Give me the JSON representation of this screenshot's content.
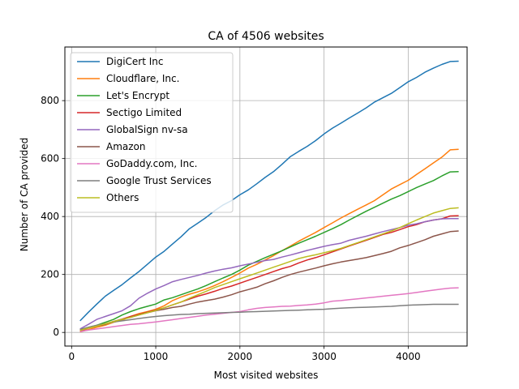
{
  "chart_data": {
    "type": "line",
    "title": "CA of 4506 websites",
    "xlabel": "Most visited websites",
    "ylabel": "Number of CA provided",
    "xlim": [
      -80,
      4700
    ],
    "ylim": [
      -47,
      985
    ],
    "xticks": [
      0,
      1000,
      2000,
      3000,
      4000
    ],
    "yticks": [
      0,
      200,
      400,
      600,
      800
    ],
    "grid": true,
    "legend_position": "top-left",
    "series": [
      {
        "name": "DigiCert Inc",
        "color": "#1f77b4",
        "x": [
          100,
          200,
          300,
          400,
          500,
          600,
          700,
          800,
          900,
          1000,
          1100,
          1200,
          1300,
          1400,
          1500,
          1600,
          1700,
          1800,
          1900,
          2000,
          2100,
          2200,
          2300,
          2400,
          2500,
          2600,
          2700,
          2800,
          2900,
          3000,
          3100,
          3200,
          3300,
          3400,
          3500,
          3600,
          3700,
          3800,
          3900,
          4000,
          4100,
          4200,
          4300,
          4400,
          4500,
          4600
        ],
        "y": [
          40,
          70,
          98,
          125,
          145,
          165,
          188,
          210,
          235,
          260,
          280,
          305,
          330,
          358,
          377,
          397,
          420,
          440,
          455,
          475,
          492,
          513,
          535,
          555,
          580,
          607,
          625,
          642,
          662,
          685,
          705,
          722,
          740,
          757,
          775,
          795,
          810,
          825,
          845,
          865,
          880,
          898,
          912,
          925,
          935,
          936
        ]
      },
      {
        "name": "Cloudflare, Inc.",
        "color": "#ff7f0e",
        "x": [
          100,
          200,
          300,
          400,
          500,
          600,
          700,
          800,
          900,
          1000,
          1100,
          1200,
          1300,
          1400,
          1500,
          1600,
          1700,
          1800,
          1900,
          2000,
          2100,
          2200,
          2300,
          2400,
          2500,
          2600,
          2700,
          2800,
          2900,
          3000,
          3100,
          3200,
          3300,
          3400,
          3500,
          3600,
          3700,
          3800,
          3900,
          4000,
          4100,
          4200,
          4300,
          4400,
          4500,
          4600
        ],
        "y": [
          2,
          10,
          18,
          25,
          35,
          42,
          55,
          65,
          72,
          80,
          92,
          110,
          122,
          132,
          140,
          150,
          162,
          175,
          190,
          205,
          222,
          235,
          250,
          265,
          282,
          298,
          315,
          330,
          345,
          362,
          378,
          395,
          410,
          425,
          440,
          455,
          475,
          495,
          510,
          525,
          545,
          565,
          585,
          605,
          630,
          632
        ]
      },
      {
        "name": "Let's Encrypt",
        "color": "#2ca02c",
        "x": [
          100,
          200,
          300,
          400,
          500,
          600,
          700,
          800,
          900,
          1000,
          1100,
          1200,
          1300,
          1400,
          1500,
          1600,
          1700,
          1800,
          1900,
          2000,
          2100,
          2200,
          2300,
          2400,
          2500,
          2600,
          2700,
          2800,
          2900,
          3000,
          3100,
          3200,
          3300,
          3400,
          3500,
          3600,
          3700,
          3800,
          3900,
          4000,
          4100,
          4200,
          4300,
          4400,
          4500,
          4600
        ],
        "y": [
          10,
          18,
          25,
          35,
          45,
          60,
          72,
          82,
          90,
          98,
          112,
          120,
          130,
          140,
          150,
          162,
          175,
          188,
          200,
          215,
          232,
          245,
          258,
          270,
          282,
          295,
          308,
          320,
          332,
          345,
          358,
          372,
          388,
          403,
          418,
          432,
          446,
          460,
          472,
          486,
          500,
          512,
          524,
          540,
          554,
          555
        ]
      },
      {
        "name": "Sectigo Limited",
        "color": "#d62728",
        "x": [
          100,
          200,
          300,
          400,
          500,
          600,
          700,
          800,
          900,
          1000,
          1100,
          1200,
          1300,
          1400,
          1500,
          1600,
          1700,
          1800,
          1900,
          2000,
          2100,
          2200,
          2300,
          2400,
          2500,
          2600,
          2700,
          2800,
          2900,
          3000,
          3100,
          3200,
          3300,
          3400,
          3500,
          3600,
          3700,
          3800,
          3900,
          4000,
          4100,
          4200,
          4300,
          4400,
          4500,
          4600
        ],
        "y": [
          5,
          15,
          22,
          30,
          38,
          46,
          55,
          62,
          70,
          78,
          85,
          95,
          105,
          115,
          125,
          133,
          142,
          152,
          160,
          170,
          180,
          190,
          200,
          210,
          220,
          228,
          240,
          250,
          258,
          268,
          278,
          288,
          298,
          308,
          318,
          328,
          338,
          345,
          355,
          365,
          372,
          382,
          388,
          392,
          402,
          403
        ]
      },
      {
        "name": "GlobalSign nv-sa",
        "color": "#9467bd",
        "x": [
          100,
          200,
          300,
          400,
          500,
          600,
          700,
          800,
          900,
          1000,
          1100,
          1200,
          1300,
          1400,
          1500,
          1600,
          1700,
          1800,
          1900,
          2000,
          2100,
          2200,
          2300,
          2400,
          2500,
          2600,
          2700,
          2800,
          2900,
          3000,
          3100,
          3200,
          3300,
          3400,
          3500,
          3600,
          3700,
          3800,
          3900,
          4000,
          4100,
          4200,
          4300,
          4400,
          4500,
          4600
        ],
        "y": [
          12,
          28,
          45,
          55,
          65,
          75,
          92,
          118,
          135,
          150,
          162,
          175,
          183,
          190,
          197,
          205,
          212,
          218,
          223,
          230,
          236,
          242,
          248,
          252,
          260,
          267,
          275,
          283,
          290,
          297,
          303,
          308,
          318,
          325,
          332,
          340,
          348,
          355,
          362,
          370,
          375,
          382,
          388,
          392,
          393,
          393
        ]
      },
      {
        "name": "Amazon",
        "color": "#8c564b",
        "x": [
          100,
          200,
          300,
          400,
          500,
          600,
          700,
          800,
          900,
          1000,
          1100,
          1200,
          1300,
          1400,
          1500,
          1600,
          1700,
          1800,
          1900,
          2000,
          2100,
          2200,
          2300,
          2400,
          2500,
          2600,
          2700,
          2800,
          2900,
          3000,
          3100,
          3200,
          3300,
          3400,
          3500,
          3600,
          3700,
          3800,
          3900,
          4000,
          4100,
          4200,
          4300,
          4400,
          4500,
          4600
        ],
        "y": [
          8,
          16,
          22,
          28,
          38,
          45,
          52,
          60,
          68,
          75,
          80,
          86,
          90,
          98,
          105,
          110,
          115,
          122,
          130,
          140,
          148,
          156,
          168,
          178,
          190,
          200,
          208,
          215,
          222,
          230,
          237,
          243,
          248,
          253,
          258,
          265,
          272,
          280,
          292,
          300,
          310,
          320,
          332,
          340,
          348,
          350
        ]
      },
      {
        "name": "GoDaddy.com, Inc.",
        "color": "#e377c2",
        "x": [
          100,
          200,
          300,
          400,
          500,
          600,
          700,
          800,
          900,
          1000,
          1100,
          1200,
          1300,
          1400,
          1500,
          1600,
          1700,
          1800,
          1900,
          2000,
          2100,
          2200,
          2300,
          2400,
          2500,
          2600,
          2700,
          2800,
          2900,
          3000,
          3100,
          3200,
          3300,
          3400,
          3500,
          3600,
          3700,
          3800,
          3900,
          4000,
          4100,
          4200,
          4300,
          4400,
          4500,
          4600
        ],
        "y": [
          3,
          8,
          12,
          16,
          20,
          24,
          28,
          30,
          33,
          36,
          40,
          44,
          48,
          52,
          56,
          60,
          63,
          66,
          69,
          72,
          78,
          83,
          86,
          88,
          90,
          91,
          93,
          95,
          98,
          102,
          108,
          110,
          113,
          116,
          119,
          122,
          125,
          128,
          131,
          134,
          138,
          142,
          146,
          150,
          153,
          154
        ]
      },
      {
        "name": "Google Trust Services",
        "color": "#7f7f7f",
        "x": [
          100,
          200,
          300,
          400,
          500,
          600,
          700,
          800,
          900,
          1000,
          1100,
          1200,
          1300,
          1400,
          1500,
          1600,
          1700,
          1800,
          1900,
          2000,
          2100,
          2200,
          2300,
          2400,
          2500,
          2600,
          2700,
          2800,
          2900,
          3000,
          3100,
          3200,
          3300,
          3400,
          3500,
          3600,
          3700,
          3800,
          3900,
          4000,
          4100,
          4200,
          4300,
          4400,
          4500,
          4600
        ],
        "y": [
          10,
          18,
          25,
          30,
          36,
          40,
          44,
          48,
          52,
          55,
          58,
          60,
          62,
          63,
          65,
          66,
          67,
          68,
          69,
          70,
          71,
          72,
          73,
          74,
          75,
          76,
          77,
          78,
          79,
          80,
          82,
          84,
          85,
          86,
          87,
          88,
          89,
          90,
          92,
          94,
          95,
          96,
          97,
          97,
          97,
          97
        ]
      },
      {
        "name": "Others",
        "color": "#bcbd22",
        "x": [
          100,
          200,
          300,
          400,
          500,
          600,
          700,
          800,
          900,
          1000,
          1100,
          1200,
          1300,
          1400,
          1500,
          1600,
          1700,
          1800,
          1900,
          2000,
          2100,
          2200,
          2300,
          2400,
          2500,
          2600,
          2700,
          2800,
          2900,
          3000,
          3100,
          3200,
          3300,
          3400,
          3500,
          3600,
          3700,
          3800,
          3900,
          4000,
          4100,
          4200,
          4300,
          4400,
          4500,
          4600
        ],
        "y": [
          7,
          15,
          22,
          30,
          38,
          45,
          52,
          60,
          68,
          76,
          85,
          95,
          105,
          118,
          130,
          142,
          155,
          165,
          175,
          185,
          195,
          205,
          215,
          225,
          235,
          245,
          255,
          262,
          268,
          275,
          282,
          290,
          300,
          310,
          320,
          330,
          340,
          350,
          362,
          375,
          388,
          400,
          412,
          420,
          428,
          430
        ]
      }
    ]
  }
}
